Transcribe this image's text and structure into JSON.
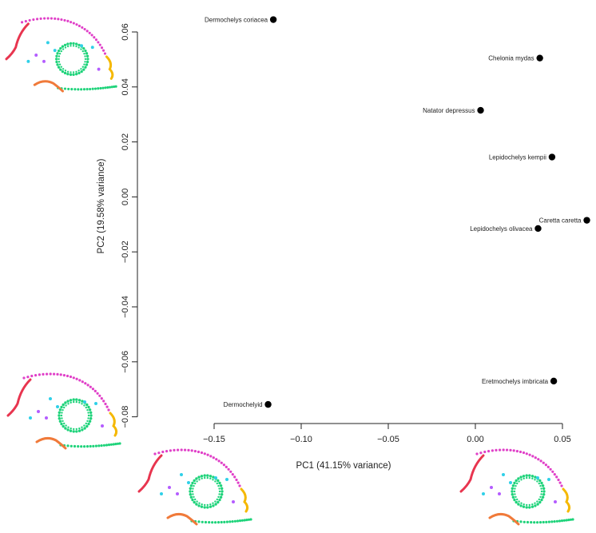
{
  "chart_data": {
    "type": "scatter",
    "xlabel": "PC1 (41.15% variance)",
    "ylabel": "PC2 (19.58% variance)",
    "xlim": [
      -0.16,
      0.065
    ],
    "ylim": [
      -0.082,
      0.066
    ],
    "x_ticks": [
      -0.15,
      -0.1,
      -0.05,
      0.0,
      0.05
    ],
    "x_tick_labels": [
      "−0.15",
      "−0.10",
      "−0.05",
      "0.00",
      "0.05"
    ],
    "y_ticks": [
      0.06,
      0.04,
      0.02,
      0.0,
      -0.02,
      -0.04,
      -0.06,
      -0.08
    ],
    "y_tick_labels": [
      "0.06",
      "0.04",
      "0.02",
      "0.00",
      "−0.02",
      "−0.04",
      "−0.06",
      "−0.08"
    ],
    "grid": false,
    "points": [
      {
        "label": "Dermochelys coriacea",
        "x": -0.116,
        "y": 0.0645
      },
      {
        "label": "Chelonia mydas",
        "x": 0.037,
        "y": 0.0505
      },
      {
        "label": "Natator depressus",
        "x": 0.003,
        "y": 0.0315
      },
      {
        "label": "Lepidochelys kempii",
        "x": 0.044,
        "y": 0.0145
      },
      {
        "label": "Caretta caretta",
        "x": 0.064,
        "y": -0.0085
      },
      {
        "label": "Lepidochelys olivacea",
        "x": 0.036,
        "y": -0.0115
      },
      {
        "label": "Eretmochelys imbricata",
        "x": 0.045,
        "y": -0.067
      },
      {
        "label": "Dermochelyid",
        "x": -0.119,
        "y": -0.0755
      }
    ]
  },
  "colors": {
    "point": "#000000",
    "axis": "#222222",
    "skull_temporal": "#e040c8",
    "skull_orbit": "#1ed37a",
    "skull_rostrum": "#e8354f",
    "skull_jaw": "#f07a3a",
    "skull_occipital": "#f5b800",
    "skull_misc_cyan": "#2fd0e8",
    "skull_misc_purple": "#b45cff"
  },
  "icons": [
    "skull-landmark-diagram"
  ]
}
